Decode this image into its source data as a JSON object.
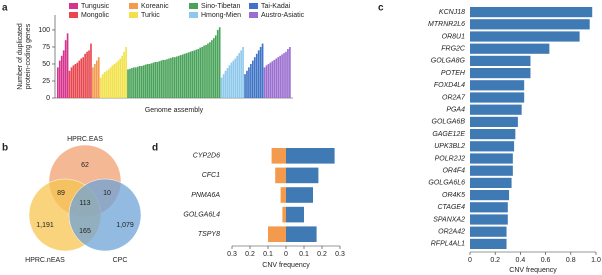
{
  "chart_data": [
    {
      "type": "grouped-bar",
      "panel": "a",
      "y_label": "Number of duplicated protein-coding genes",
      "x_label": "Genome assembly",
      "ylim": [
        0,
        122
      ],
      "yticks": [
        0,
        25,
        50,
        75,
        100
      ],
      "series": [
        {
          "name": "Tungusic",
          "color": "#d6338f",
          "values": [
            45,
            55,
            62,
            70,
            85,
            95
          ]
        },
        {
          "name": "Mongolic",
          "color": "#e8474f",
          "values": [
            40,
            45,
            48,
            50,
            52,
            55,
            58,
            60,
            65,
            68,
            70,
            80
          ]
        },
        {
          "name": "Koreanic",
          "color": "#f39a4c",
          "values": [
            45,
            50,
            55,
            60
          ]
        },
        {
          "name": "Turkic",
          "color": "#f2e24a",
          "values": [
            30,
            35,
            38,
            40,
            42,
            45,
            48,
            50,
            52,
            55,
            58,
            62,
            68,
            75
          ]
        },
        {
          "name": "Sino-Tibetan",
          "color": "#4aa35a",
          "values": [
            42,
            43,
            44,
            45,
            45,
            46,
            47,
            47,
            48,
            49,
            50,
            50,
            51,
            52,
            53,
            53,
            54,
            55,
            56,
            56,
            57,
            58,
            59,
            60,
            60,
            61,
            62,
            63,
            64,
            65,
            66,
            67,
            68,
            69,
            70,
            71,
            72,
            74,
            75,
            77,
            78,
            80,
            82,
            85,
            88,
            92,
            100,
            104
          ]
        },
        {
          "name": "Hmong-Mien",
          "color": "#8ec9ec",
          "values": [
            30,
            35,
            40,
            44,
            48,
            52,
            55,
            58,
            62,
            66,
            70,
            75
          ]
        },
        {
          "name": "Tai-Kadai",
          "color": "#3f74c7",
          "values": [
            35,
            40,
            45,
            50,
            55,
            60,
            65,
            70,
            75,
            80
          ]
        },
        {
          "name": "Austro-Asiatic",
          "color": "#9b6fd0",
          "values": [
            45,
            48,
            50,
            52,
            54,
            56,
            58,
            60,
            62,
            64,
            66,
            68,
            72,
            75
          ]
        }
      ]
    },
    {
      "type": "venn",
      "panel": "b",
      "sets": [
        {
          "name": "HPRC.EAS",
          "color": "#f0a070"
        },
        {
          "name": "HPRC.nEAS",
          "color": "#f7c550"
        },
        {
          "name": "CPC",
          "color": "#6fa3d6"
        }
      ],
      "regions": {
        "eas": "62",
        "eas_neas": "89",
        "eas_cpc": "10",
        "all": "113",
        "neas": "1,191",
        "neas_cpc": "165",
        "cpc": "1,079"
      }
    },
    {
      "type": "hbar",
      "panel": "c",
      "x_label": "CNV frequency",
      "color": "#3f7ab5",
      "categories": [
        "KCNJ18",
        "MTRNR2L6",
        "OR8U1",
        "FRG2C",
        "GOLGA8G",
        "POTEH",
        "FOXD4L4",
        "OR2A7",
        "PGA4",
        "GOLGA6B",
        "GAGE12E",
        "UPK3BL2",
        "POLR2J2",
        "OR4F4",
        "GOLGA6L6",
        "OR4K5",
        "CTAGE4",
        "SPANXA2",
        "OR2A42",
        "RFPL4AL1"
      ],
      "values": [
        0.97,
        0.95,
        0.87,
        0.63,
        0.48,
        0.48,
        0.43,
        0.43,
        0.41,
        0.38,
        0.36,
        0.35,
        0.34,
        0.34,
        0.33,
        0.31,
        0.3,
        0.3,
        0.29,
        0.29
      ],
      "xlim": [
        0,
        1
      ],
      "xticks": [
        0,
        0.2,
        0.4,
        0.6,
        0.8,
        {
          "value": 1,
          "label": "1.0"
        }
      ]
    },
    {
      "type": "diverging-bar",
      "panel": "d",
      "x_label": "CNV frequency",
      "categories": [
        "CYP2D6",
        "CFC1",
        "PNMA6A",
        "GOLGA6L4",
        "TSPY8"
      ],
      "series": [
        {
          "color": "#f39a4c",
          "values": [
            -0.08,
            -0.06,
            -0.03,
            -0.02,
            -0.1
          ]
        },
        {
          "color": "#3f7ab5",
          "values": [
            0.27,
            0.18,
            0.15,
            0.1,
            0.17
          ]
        }
      ],
      "xlim": [
        -0.3,
        0.3
      ],
      "xticks": [
        {
          "value": -0.3,
          "label": "0.3"
        },
        {
          "value": -0.2,
          "label": "0.2"
        },
        {
          "value": -0.1,
          "label": "0.1"
        },
        0,
        0.1,
        0.2,
        0.3
      ]
    }
  ]
}
